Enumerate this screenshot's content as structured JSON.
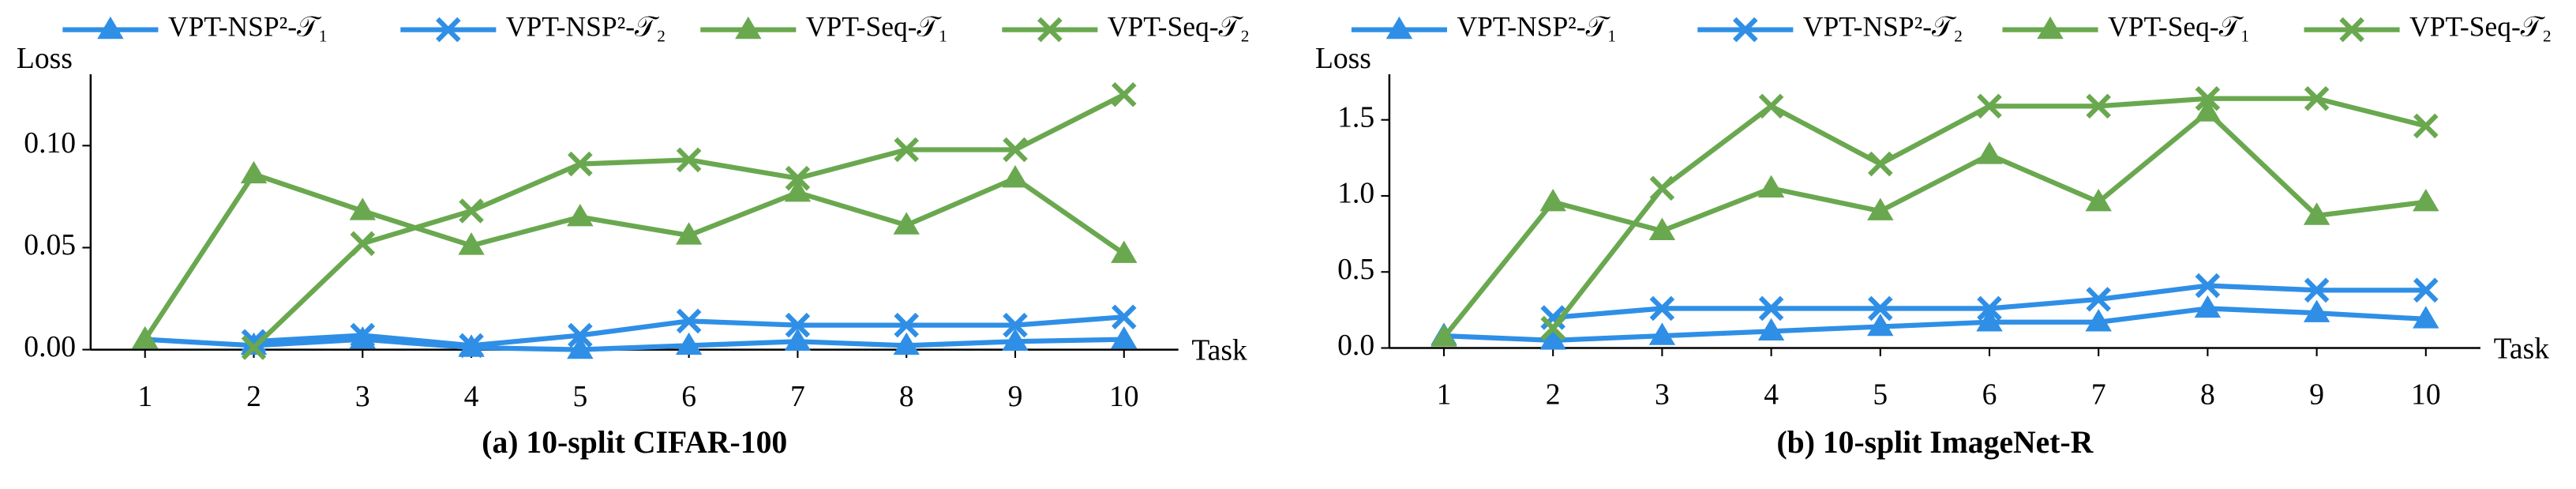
{
  "chart_data": [
    {
      "type": "line",
      "title": "(a) 10-split CIFAR-100",
      "xlabel": "Task",
      "ylabel": "Loss",
      "x": [
        1,
        2,
        3,
        4,
        5,
        6,
        7,
        8,
        9,
        10
      ],
      "xlim": [
        0.5,
        10.5
      ],
      "xticks": [
        1,
        2,
        3,
        4,
        5,
        6,
        7,
        8,
        9,
        10
      ],
      "ylim": [
        0,
        0.135
      ],
      "yticks": [
        {
          "value": 0,
          "label": "0.00"
        },
        0.05,
        {
          "value": 0.1,
          "label": "0.10"
        }
      ],
      "series": [
        {
          "name": "VPT-NSP²-𝒯₁",
          "color": "#2f8fe6",
          "marker": "triangle",
          "values": [
            0.005,
            0.002,
            0.005,
            0.001,
            0.0,
            0.002,
            0.004,
            0.002,
            0.004,
            0.005
          ]
        },
        {
          "name": "VPT-NSP²-𝒯₂",
          "color": "#2f8fe6",
          "marker": "x",
          "values": [
            null,
            0.004,
            0.007,
            0.002,
            0.007,
            0.014,
            0.012,
            0.012,
            0.012,
            0.016
          ]
        },
        {
          "name": "VPT-Seq-𝒯₁",
          "color": "#6aa84f",
          "marker": "triangle",
          "values": [
            0.005,
            0.086,
            0.068,
            0.051,
            0.065,
            0.056,
            0.077,
            0.061,
            0.084,
            0.047
          ]
        },
        {
          "name": "VPT-Seq-𝒯₂",
          "color": "#6aa84f",
          "marker": "x",
          "values": [
            null,
            0.001,
            0.052,
            0.068,
            0.091,
            0.093,
            0.084,
            0.098,
            0.098,
            0.125
          ]
        }
      ]
    },
    {
      "type": "line",
      "title": "(b) 10-split ImageNet-R",
      "xlabel": "Task",
      "ylabel": "Loss",
      "x": [
        1,
        2,
        3,
        4,
        5,
        6,
        7,
        8,
        9,
        10
      ],
      "xlim": [
        0.5,
        10.5
      ],
      "xticks": [
        1,
        2,
        3,
        4,
        5,
        6,
        7,
        8,
        9,
        10
      ],
      "ylim": [
        0,
        1.8
      ],
      "yticks": [
        {
          "value": 0,
          "label": "0.0"
        },
        0.5,
        {
          "value": 1,
          "label": "1.0"
        },
        1.5
      ],
      "series": [
        {
          "name": "VPT-NSP²-𝒯₁",
          "color": "#2f8fe6",
          "marker": "triangle",
          "values": [
            0.08,
            0.05,
            0.08,
            0.11,
            0.14,
            0.17,
            0.17,
            0.26,
            0.23,
            0.19
          ]
        },
        {
          "name": "VPT-NSP²-𝒯₂",
          "color": "#2f8fe6",
          "marker": "x",
          "values": [
            null,
            0.2,
            0.26,
            0.26,
            0.26,
            0.26,
            0.32,
            0.41,
            0.38,
            0.38
          ]
        },
        {
          "name": "VPT-Seq-𝒯₁",
          "color": "#6aa84f",
          "marker": "triangle",
          "values": [
            0.07,
            0.96,
            0.77,
            1.05,
            0.9,
            1.27,
            0.96,
            1.55,
            0.87,
            0.96
          ]
        },
        {
          "name": "VPT-Seq-𝒯₂",
          "color": "#6aa84f",
          "marker": "x",
          "values": [
            null,
            0.13,
            1.05,
            1.59,
            1.21,
            1.59,
            1.59,
            1.64,
            1.64,
            1.46
          ]
        }
      ]
    }
  ]
}
